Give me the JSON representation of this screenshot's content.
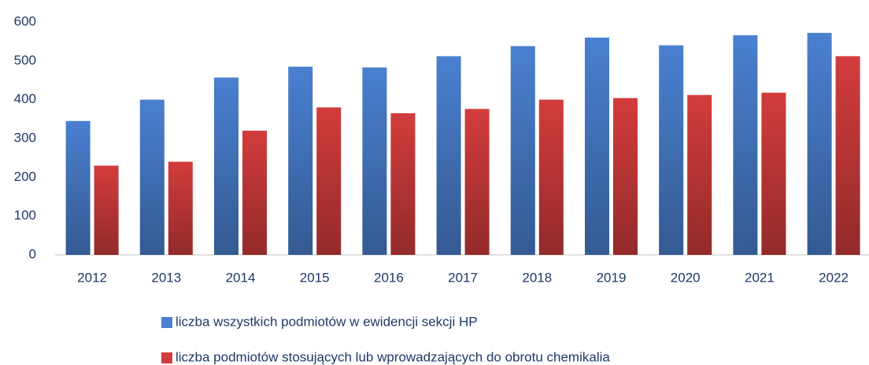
{
  "chart_data": {
    "type": "bar",
    "categories": [
      "2012",
      "2013",
      "2014",
      "2015",
      "2016",
      "2017",
      "2018",
      "2019",
      "2020",
      "2021",
      "2022"
    ],
    "series": [
      {
        "name": "liczba wszystkich podmiotów w ewidencji sekcji HP",
        "color": "#4a80d0",
        "values": [
          345,
          400,
          457,
          485,
          483,
          512,
          538,
          560,
          540,
          566,
          572
        ]
      },
      {
        "name": "liczba podmiotów stosujących lub wprowadzających do obrotu chemikalia",
        "color": "#d23c3c",
        "values": [
          230,
          240,
          320,
          380,
          365,
          376,
          400,
          404,
          412,
          418,
          512
        ]
      }
    ],
    "ylim": [
      0,
      600
    ],
    "yticks": [
      0,
      100,
      200,
      300,
      400,
      500,
      600
    ],
    "grid": false,
    "legend": "bottom"
  }
}
